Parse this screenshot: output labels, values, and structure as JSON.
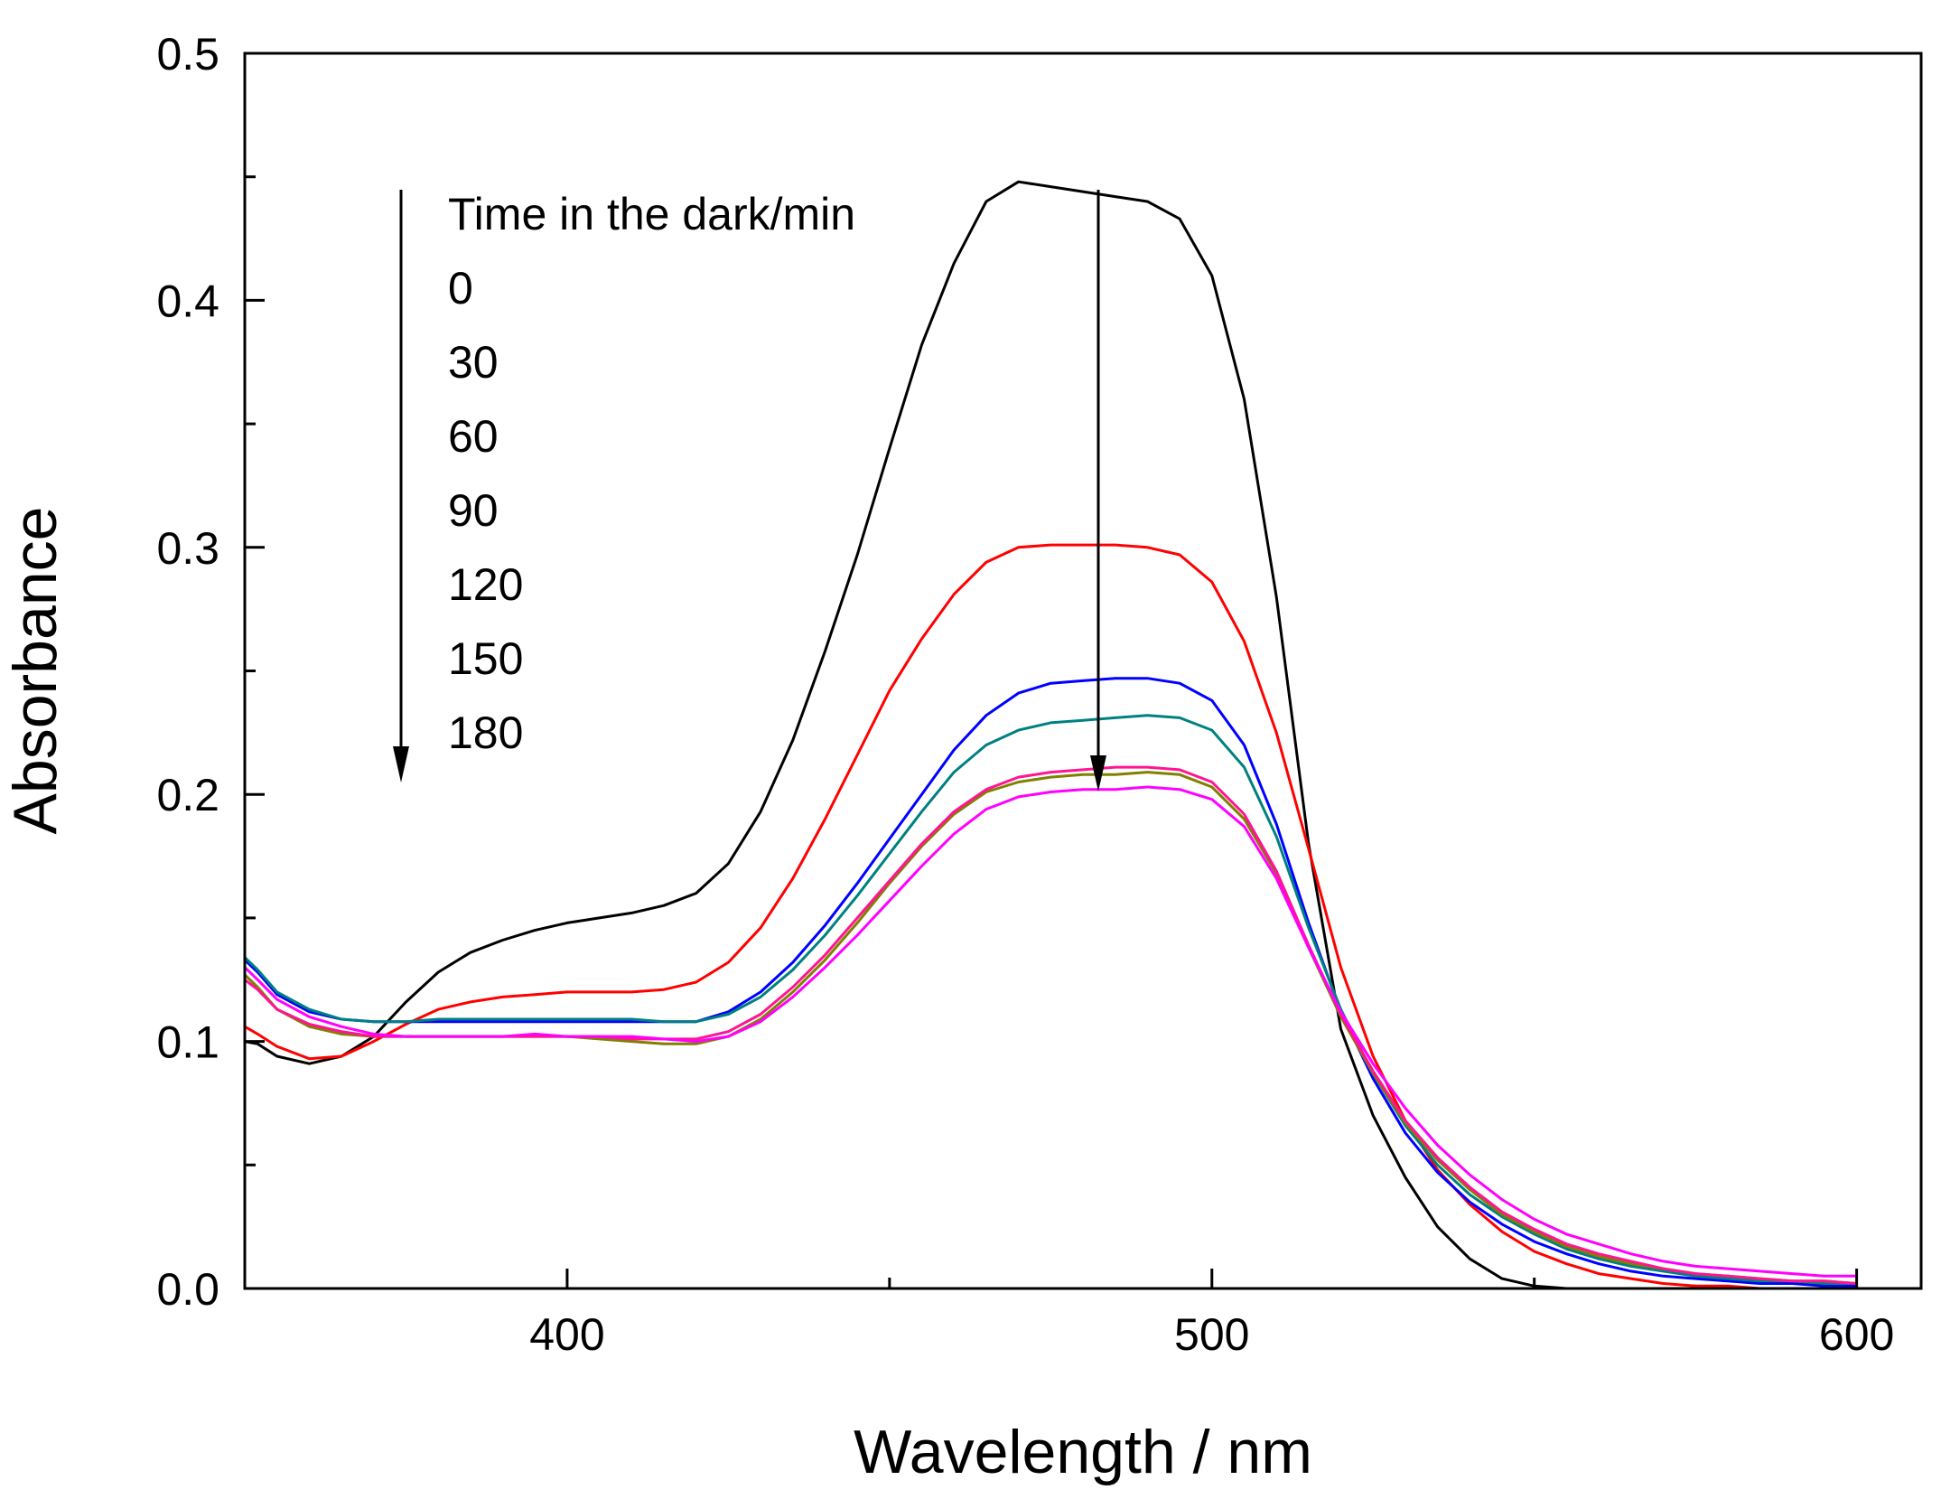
{
  "chart_data": {
    "type": "line",
    "xlabel": "Wavelength / nm",
    "ylabel": "Absorbance",
    "xlim": [
      350,
      610
    ],
    "ylim": [
      0.0,
      0.5
    ],
    "x_ticks": [
      400,
      500,
      600
    ],
    "y_ticks": [
      0.0,
      0.1,
      0.2,
      0.3,
      0.4,
      0.5
    ],
    "x_tick_labels": [
      "400",
      "500",
      "600"
    ],
    "y_tick_labels": [
      "0.0",
      "0.1",
      "0.2",
      "0.3",
      "0.4",
      "0.5"
    ],
    "legend": {
      "title": "Time in the dark/min",
      "entries": [
        "0",
        "30",
        "60",
        "90",
        "120",
        "150",
        "180"
      ]
    },
    "x": [
      350,
      352,
      355,
      360,
      365,
      370,
      375,
      380,
      385,
      390,
      395,
      400,
      405,
      410,
      415,
      420,
      425,
      430,
      435,
      440,
      445,
      450,
      455,
      460,
      465,
      470,
      475,
      480,
      485,
      490,
      495,
      500,
      505,
      510,
      515,
      520,
      525,
      530,
      535,
      540,
      545,
      550,
      555,
      560,
      565,
      570,
      575,
      580,
      585,
      590,
      595,
      600
    ],
    "series": [
      {
        "name": "0",
        "color": "#000000",
        "values": [
          0.1,
          0.099,
          0.094,
          0.091,
          0.094,
          0.102,
          0.116,
          0.128,
          0.136,
          0.141,
          0.145,
          0.148,
          0.15,
          0.152,
          0.155,
          0.16,
          0.172,
          0.193,
          0.222,
          0.258,
          0.297,
          0.34,
          0.382,
          0.415,
          0.44,
          0.448,
          0.446,
          0.444,
          0.442,
          0.44,
          0.433,
          0.41,
          0.36,
          0.28,
          0.18,
          0.105,
          0.07,
          0.045,
          0.025,
          0.012,
          0.004,
          0.001,
          0.0,
          0.0,
          0.0,
          0.0,
          0.0,
          0.0,
          0.0,
          0.0,
          0.0,
          0.0
        ]
      },
      {
        "name": "30",
        "color": "#ff0000",
        "values": [
          0.106,
          0.103,
          0.098,
          0.093,
          0.094,
          0.1,
          0.107,
          0.113,
          0.116,
          0.118,
          0.119,
          0.12,
          0.12,
          0.12,
          0.121,
          0.124,
          0.132,
          0.146,
          0.166,
          0.19,
          0.216,
          0.242,
          0.263,
          0.281,
          0.294,
          0.3,
          0.301,
          0.301,
          0.301,
          0.3,
          0.297,
          0.286,
          0.262,
          0.225,
          0.178,
          0.13,
          0.094,
          0.068,
          0.048,
          0.034,
          0.023,
          0.015,
          0.01,
          0.006,
          0.004,
          0.002,
          0.001,
          0.001,
          0.0,
          0.0,
          0.0,
          0.0
        ]
      },
      {
        "name": "60",
        "color": "#0000ff",
        "values": [
          0.133,
          0.128,
          0.119,
          0.112,
          0.109,
          0.108,
          0.108,
          0.108,
          0.108,
          0.108,
          0.108,
          0.108,
          0.108,
          0.108,
          0.108,
          0.108,
          0.112,
          0.12,
          0.132,
          0.147,
          0.164,
          0.182,
          0.2,
          0.218,
          0.232,
          0.241,
          0.245,
          0.246,
          0.247,
          0.247,
          0.245,
          0.238,
          0.22,
          0.188,
          0.148,
          0.112,
          0.085,
          0.063,
          0.047,
          0.035,
          0.026,
          0.019,
          0.014,
          0.01,
          0.007,
          0.005,
          0.004,
          0.003,
          0.002,
          0.002,
          0.001,
          0.001
        ]
      },
      {
        "name": "90",
        "color": "#008080",
        "values": [
          0.134,
          0.129,
          0.12,
          0.113,
          0.109,
          0.108,
          0.108,
          0.109,
          0.109,
          0.109,
          0.109,
          0.109,
          0.109,
          0.109,
          0.108,
          0.108,
          0.111,
          0.118,
          0.129,
          0.143,
          0.159,
          0.176,
          0.193,
          0.209,
          0.22,
          0.226,
          0.229,
          0.23,
          0.231,
          0.232,
          0.231,
          0.226,
          0.211,
          0.183,
          0.146,
          0.113,
          0.087,
          0.066,
          0.05,
          0.038,
          0.029,
          0.022,
          0.016,
          0.012,
          0.009,
          0.007,
          0.005,
          0.004,
          0.003,
          0.003,
          0.002,
          0.002
        ]
      },
      {
        "name": "120",
        "color": "#808000",
        "values": [
          0.127,
          0.122,
          0.113,
          0.106,
          0.103,
          0.102,
          0.102,
          0.102,
          0.102,
          0.102,
          0.102,
          0.102,
          0.101,
          0.1,
          0.099,
          0.099,
          0.102,
          0.109,
          0.12,
          0.133,
          0.148,
          0.164,
          0.179,
          0.192,
          0.201,
          0.205,
          0.207,
          0.208,
          0.208,
          0.209,
          0.208,
          0.203,
          0.19,
          0.168,
          0.138,
          0.11,
          0.087,
          0.067,
          0.052,
          0.04,
          0.03,
          0.023,
          0.017,
          0.013,
          0.01,
          0.008,
          0.006,
          0.005,
          0.004,
          0.003,
          0.003,
          0.002
        ]
      },
      {
        "name": "150",
        "color": "#ff1493",
        "values": [
          0.125,
          0.121,
          0.113,
          0.107,
          0.104,
          0.102,
          0.102,
          0.102,
          0.102,
          0.102,
          0.102,
          0.102,
          0.102,
          0.101,
          0.101,
          0.101,
          0.104,
          0.111,
          0.122,
          0.135,
          0.15,
          0.165,
          0.18,
          0.193,
          0.202,
          0.207,
          0.209,
          0.21,
          0.211,
          0.211,
          0.21,
          0.205,
          0.192,
          0.169,
          0.139,
          0.111,
          0.088,
          0.068,
          0.053,
          0.041,
          0.031,
          0.024,
          0.018,
          0.014,
          0.011,
          0.008,
          0.006,
          0.005,
          0.004,
          0.003,
          0.003,
          0.002
        ]
      },
      {
        "name": "180",
        "color": "#ff00ff",
        "values": [
          0.13,
          0.125,
          0.117,
          0.11,
          0.106,
          0.103,
          0.102,
          0.102,
          0.102,
          0.102,
          0.103,
          0.102,
          0.102,
          0.102,
          0.101,
          0.1,
          0.102,
          0.108,
          0.118,
          0.13,
          0.143,
          0.157,
          0.171,
          0.184,
          0.194,
          0.199,
          0.201,
          0.202,
          0.202,
          0.203,
          0.202,
          0.198,
          0.187,
          0.166,
          0.138,
          0.112,
          0.091,
          0.073,
          0.058,
          0.046,
          0.036,
          0.028,
          0.022,
          0.018,
          0.014,
          0.011,
          0.009,
          0.008,
          0.007,
          0.006,
          0.005,
          0.005
        ]
      }
    ]
  }
}
